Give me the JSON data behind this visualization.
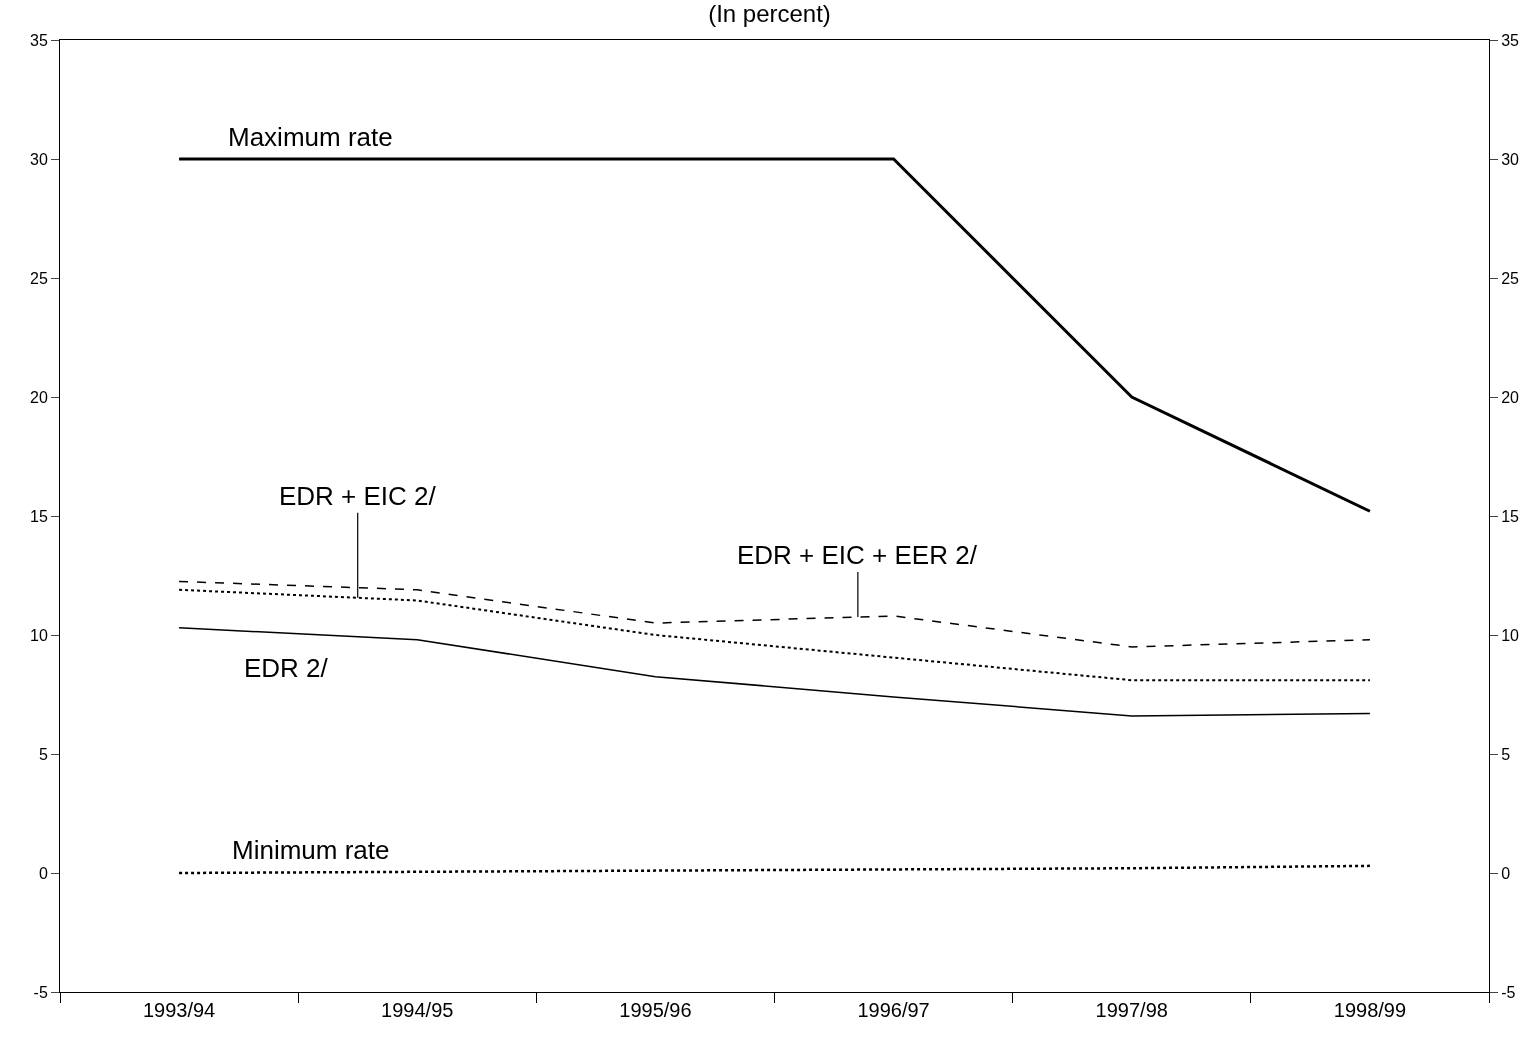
{
  "chart_data": {
    "type": "line",
    "title": "(In percent)",
    "categories": [
      "1993/94",
      "1994/95",
      "1995/96",
      "1996/97",
      "1997/98",
      "1998/99"
    ],
    "series": [
      {
        "name": "Maximum rate",
        "color": "#000000",
        "line_style": "solid",
        "values": [
          30,
          30,
          30,
          30,
          20,
          15.2
        ]
      },
      {
        "name": "EDR + EIC + EER 2/",
        "color": "#000000",
        "line_style": "dashed",
        "values": [
          12.25,
          11.9,
          10.5,
          10.8,
          9.5,
          9.8
        ]
      },
      {
        "name": "EDR + EIC 2/",
        "color": "#000000",
        "line_style": "dotted",
        "values": [
          11.9,
          11.45,
          10.0,
          9.05,
          8.1,
          8.1
        ]
      },
      {
        "name": "EDR 2/",
        "color": "#000000",
        "line_style": "solid",
        "values": [
          10.3,
          9.8,
          8.25,
          7.4,
          6.6,
          6.7
        ]
      },
      {
        "name": "Minimum rate",
        "color": "#000000",
        "line_style": "dotted",
        "values": [
          0,
          0.05,
          0.1,
          0.15,
          0.2,
          0.3
        ]
      }
    ],
    "ylim": [
      -5,
      35
    ],
    "yticks": [
      -5,
      0,
      5,
      10,
      15,
      20,
      25,
      30,
      35
    ],
    "y2lim": [
      -5,
      35
    ],
    "y2ticks": [
      -5,
      0,
      5,
      10,
      15,
      20,
      25,
      30,
      35
    ],
    "legend": false,
    "marker": "none"
  }
}
